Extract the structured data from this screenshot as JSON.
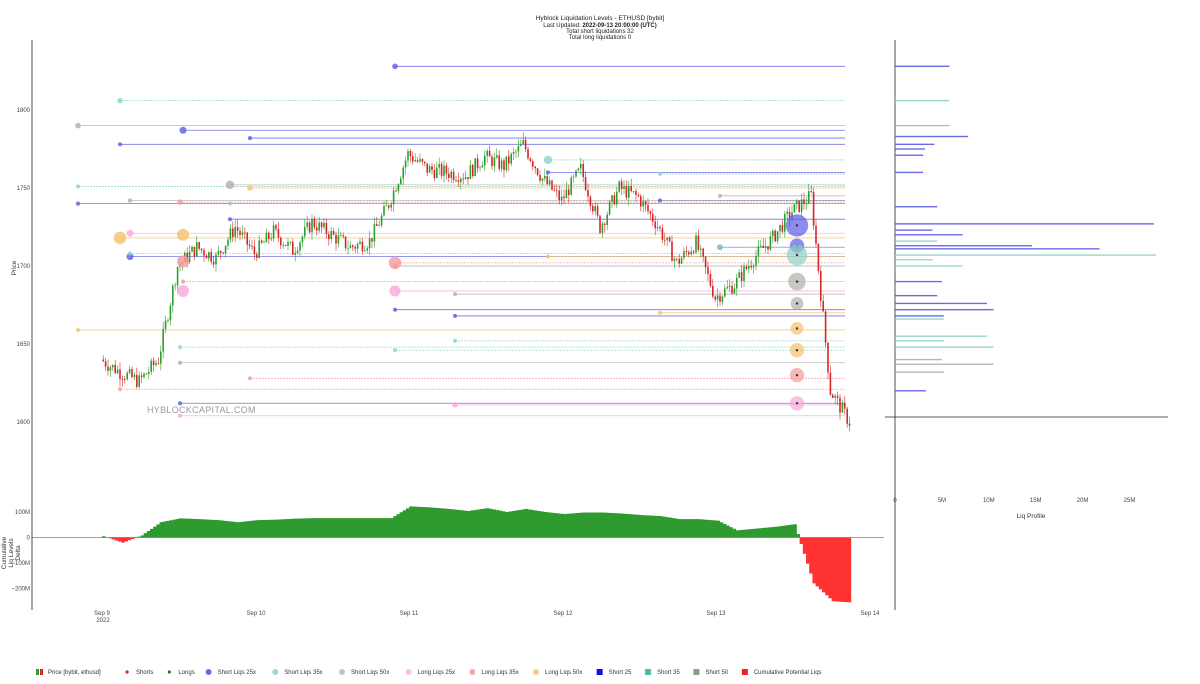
{
  "header": {
    "title": "Hyblock Liquidation Levels - ETHUSD [bybit]",
    "updated_prefix": "Last Updated: ",
    "updated_value": "2022-09-13 20:00:00 (UTC)",
    "short_count": "Total short liquidations 32",
    "long_count": "Total long liquidations 0"
  },
  "watermark": "HYBLOCKCAPITAL.COM",
  "colors": {
    "candle_up": "#2ca02c",
    "candle_down": "#d62728",
    "short_25x": "#5b5be6",
    "short_35x": "#8fd2c6",
    "short_50x": "#b0b0a8",
    "long_25x": "#f7a8d8",
    "long_35x": "#f79a9a",
    "long_50x": "#f5c26b",
    "delta_positive": "#2f9a2f",
    "delta_negative": "#ff3333"
  },
  "chart_data": [
    {
      "type": "line",
      "name": "price",
      "ylabel": "Price",
      "yticks": [
        1600,
        1650,
        1700,
        1750,
        1800
      ],
      "x_tick_labels": [
        "Sep 9",
        "Sep 10",
        "Sep 11",
        "Sep 12",
        "Sep 13",
        "Sep 14"
      ],
      "x_year_label": "2022",
      "x": [
        "Sep 9 00:00",
        "Sep 9 03:00",
        "Sep 9 06:00",
        "Sep 9 09:00",
        "Sep 9 12:00",
        "Sep 9 15:00",
        "Sep 9 18:00",
        "Sep 9 21:00",
        "Sep 10 00:00",
        "Sep 10 03:00",
        "Sep 10 06:00",
        "Sep 10 09:00",
        "Sep 10 12:00",
        "Sep 10 15:00",
        "Sep 10 18:00",
        "Sep 10 21:00",
        "Sep 11 00:00",
        "Sep 11 03:00",
        "Sep 11 06:00",
        "Sep 11 09:00",
        "Sep 11 12:00",
        "Sep 11 15:00",
        "Sep 11 18:00",
        "Sep 11 21:00",
        "Sep 12 00:00",
        "Sep 12 03:00",
        "Sep 12 06:00",
        "Sep 12 09:00",
        "Sep 12 12:00",
        "Sep 12 15:00",
        "Sep 12 18:00",
        "Sep 12 21:00",
        "Sep 13 00:00",
        "Sep 13 03:00",
        "Sep 13 06:00",
        "Sep 13 09:00",
        "Sep 13 12:00",
        "Sep 13 15:00",
        "Sep 13 18:00",
        "Sep 13 21:00"
      ],
      "close": [
        1640,
        1632,
        1626,
        1640,
        1700,
        1712,
        1705,
        1725,
        1708,
        1722,
        1710,
        1728,
        1720,
        1712,
        1716,
        1740,
        1772,
        1762,
        1760,
        1758,
        1770,
        1764,
        1778,
        1756,
        1742,
        1762,
        1725,
        1750,
        1744,
        1726,
        1702,
        1715,
        1680,
        1688,
        1705,
        1718,
        1735,
        1745,
        1620,
        1600
      ]
    },
    {
      "type": "scatter",
      "name": "liquidation levels",
      "series": [
        {
          "name": "Short Liqs 25x",
          "price": [
            1828,
            1787,
            1782,
            1778,
            1760,
            1742,
            1740,
            1730,
            1712,
            1706,
            1672,
            1668,
            1612
          ],
          "size": [
            4,
            5,
            3,
            3,
            3,
            3,
            3,
            3,
            4,
            5,
            3,
            3,
            3
          ]
        },
        {
          "name": "Short Liqs 35x",
          "price": [
            1806,
            1768,
            1759,
            1751,
            1740,
            1712,
            1708,
            1700,
            1652,
            1648,
            1646
          ],
          "size": [
            4,
            6,
            3,
            3,
            3,
            4,
            3,
            3,
            3,
            3,
            3
          ]
        },
        {
          "name": "Short Liqs 50x",
          "price": [
            1790,
            1752,
            1745,
            1742,
            1700,
            1682,
            1638
          ],
          "size": [
            4,
            6,
            3,
            3,
            3,
            3,
            3
          ]
        },
        {
          "name": "Long Liqs 25x",
          "price": [
            1721,
            1684,
            1611,
            1604
          ],
          "size": [
            5,
            8,
            4,
            3
          ]
        },
        {
          "name": "Long Liqs 35x",
          "price": [
            1741,
            1702,
            1690,
            1628,
            1621
          ],
          "size": [
            4,
            9,
            3,
            3,
            3
          ]
        },
        {
          "name": "Long Liqs 50x",
          "price": [
            1750,
            1718,
            1706,
            1670,
            1659
          ],
          "size": [
            4,
            9,
            3,
            3,
            3
          ]
        },
        {
          "name": "Short 25",
          "price": [
            1726,
            1713
          ],
          "size": [
            14,
            9
          ]
        },
        {
          "name": "Short 35",
          "price": [
            1707
          ],
          "size": [
            13
          ]
        },
        {
          "name": "Short 50",
          "price": [
            1690,
            1676
          ],
          "size": [
            11,
            8
          ]
        },
        {
          "name": "Long 25",
          "price": [
            1612
          ],
          "size": [
            9
          ]
        },
        {
          "name": "Long 35",
          "price": [
            1630
          ],
          "size": [
            9
          ]
        },
        {
          "name": "Long 50",
          "price": [
            1660,
            1646
          ],
          "size": [
            8,
            9
          ]
        }
      ]
    },
    {
      "type": "bar",
      "name": "Liq Profile",
      "xlabel": "Liq Profile",
      "xticks": [
        "0",
        "5M",
        "10M",
        "15M",
        "20M",
        "25M"
      ],
      "bars": [
        {
          "price": 1828,
          "value": 5.8,
          "side": "short"
        },
        {
          "price": 1806,
          "value": 5.8,
          "side": "short35"
        },
        {
          "price": 1790,
          "value": 5.8,
          "side": "short50"
        },
        {
          "price": 1783,
          "value": 7.8,
          "side": "short"
        },
        {
          "price": 1778,
          "value": 4.2,
          "side": "short"
        },
        {
          "price": 1775,
          "value": 3.2,
          "side": "short"
        },
        {
          "price": 1771,
          "value": 3.0,
          "side": "short"
        },
        {
          "price": 1760,
          "value": 3.0,
          "side": "short"
        },
        {
          "price": 1738,
          "value": 4.5,
          "side": "short"
        },
        {
          "price": 1727,
          "value": 27.6,
          "side": "short"
        },
        {
          "price": 1723,
          "value": 4.0,
          "side": "short"
        },
        {
          "price": 1720,
          "value": 7.2,
          "side": "short"
        },
        {
          "price": 1716,
          "value": 4.5,
          "side": "short35"
        },
        {
          "price": 1713,
          "value": 14.6,
          "side": "short"
        },
        {
          "price": 1711,
          "value": 21.8,
          "side": "short"
        },
        {
          "price": 1707,
          "value": 27.8,
          "side": "short35"
        },
        {
          "price": 1704,
          "value": 4.0,
          "side": "short35"
        },
        {
          "price": 1700,
          "value": 7.2,
          "side": "short35"
        },
        {
          "price": 1690,
          "value": 5.0,
          "side": "short"
        },
        {
          "price": 1681,
          "value": 4.5,
          "side": "short"
        },
        {
          "price": 1676,
          "value": 9.8,
          "side": "short"
        },
        {
          "price": 1672,
          "value": 10.5,
          "side": "short"
        },
        {
          "price": 1668,
          "value": 5.2,
          "side": "short"
        },
        {
          "price": 1666,
          "value": 5.2,
          "side": "short35"
        },
        {
          "price": 1655,
          "value": 9.8,
          "side": "short35"
        },
        {
          "price": 1652,
          "value": 5.2,
          "side": "short35"
        },
        {
          "price": 1648,
          "value": 10.5,
          "side": "short35"
        },
        {
          "price": 1640,
          "value": 5.0,
          "side": "short50"
        },
        {
          "price": 1637,
          "value": 10.5,
          "side": "short50"
        },
        {
          "price": 1632,
          "value": 5.2,
          "side": "short50"
        },
        {
          "price": 1620,
          "value": 3.3,
          "side": "short"
        }
      ]
    },
    {
      "type": "area",
      "name": "Cumulative Potential Liqs",
      "ylabel": "Cumulative Liq Levels Delta",
      "yticks": [
        "100M",
        "0",
        "−100M",
        "−200M"
      ],
      "ytick_values": [
        100,
        0,
        -100,
        -200
      ],
      "ylim": [
        -270,
        140
      ],
      "unit": "M",
      "values": [
        5,
        -20,
        8,
        60,
        75,
        72,
        68,
        60,
        68,
        70,
        74,
        76,
        76,
        76,
        76,
        76,
        122,
        118,
        112,
        104,
        115,
        100,
        112,
        100,
        92,
        98,
        98,
        94,
        88,
        84,
        72,
        72,
        66,
        28,
        35,
        42,
        52,
        -180,
        -250,
        -255
      ]
    }
  ],
  "legend": [
    {
      "label": "Price [bybit, ethusd]",
      "marker": "candle"
    },
    {
      "label": "Shorts",
      "marker": "dot",
      "color": "#d62728"
    },
    {
      "label": "Longs",
      "marker": "dot",
      "color": "#2f6f2f"
    },
    {
      "label": "Short Liqs 25x",
      "marker": "circle",
      "color": "#6b6bea"
    },
    {
      "label": "Short Liqs 35x",
      "marker": "circle",
      "color": "#9ed9cd"
    },
    {
      "label": "Short Liqs 50x",
      "marker": "circle",
      "color": "#c4c4bc"
    },
    {
      "label": "Long Liqs 25x",
      "marker": "circle",
      "color": "#f9c3e5"
    },
    {
      "label": "Long Liqs 35x",
      "marker": "circle",
      "color": "#f8a9a9"
    },
    {
      "label": "Long Liqs 50x",
      "marker": "circle",
      "color": "#f7cf82"
    },
    {
      "label": "Short 25",
      "marker": "square",
      "color": "#1010e0"
    },
    {
      "label": "Short 35",
      "marker": "square",
      "color": "#4db8ad"
    },
    {
      "label": "Short 50",
      "marker": "square",
      "color": "#8aa07f"
    },
    {
      "label": "Cumulative Potential Liqs",
      "marker": "square",
      "color": "#ee2222"
    }
  ]
}
